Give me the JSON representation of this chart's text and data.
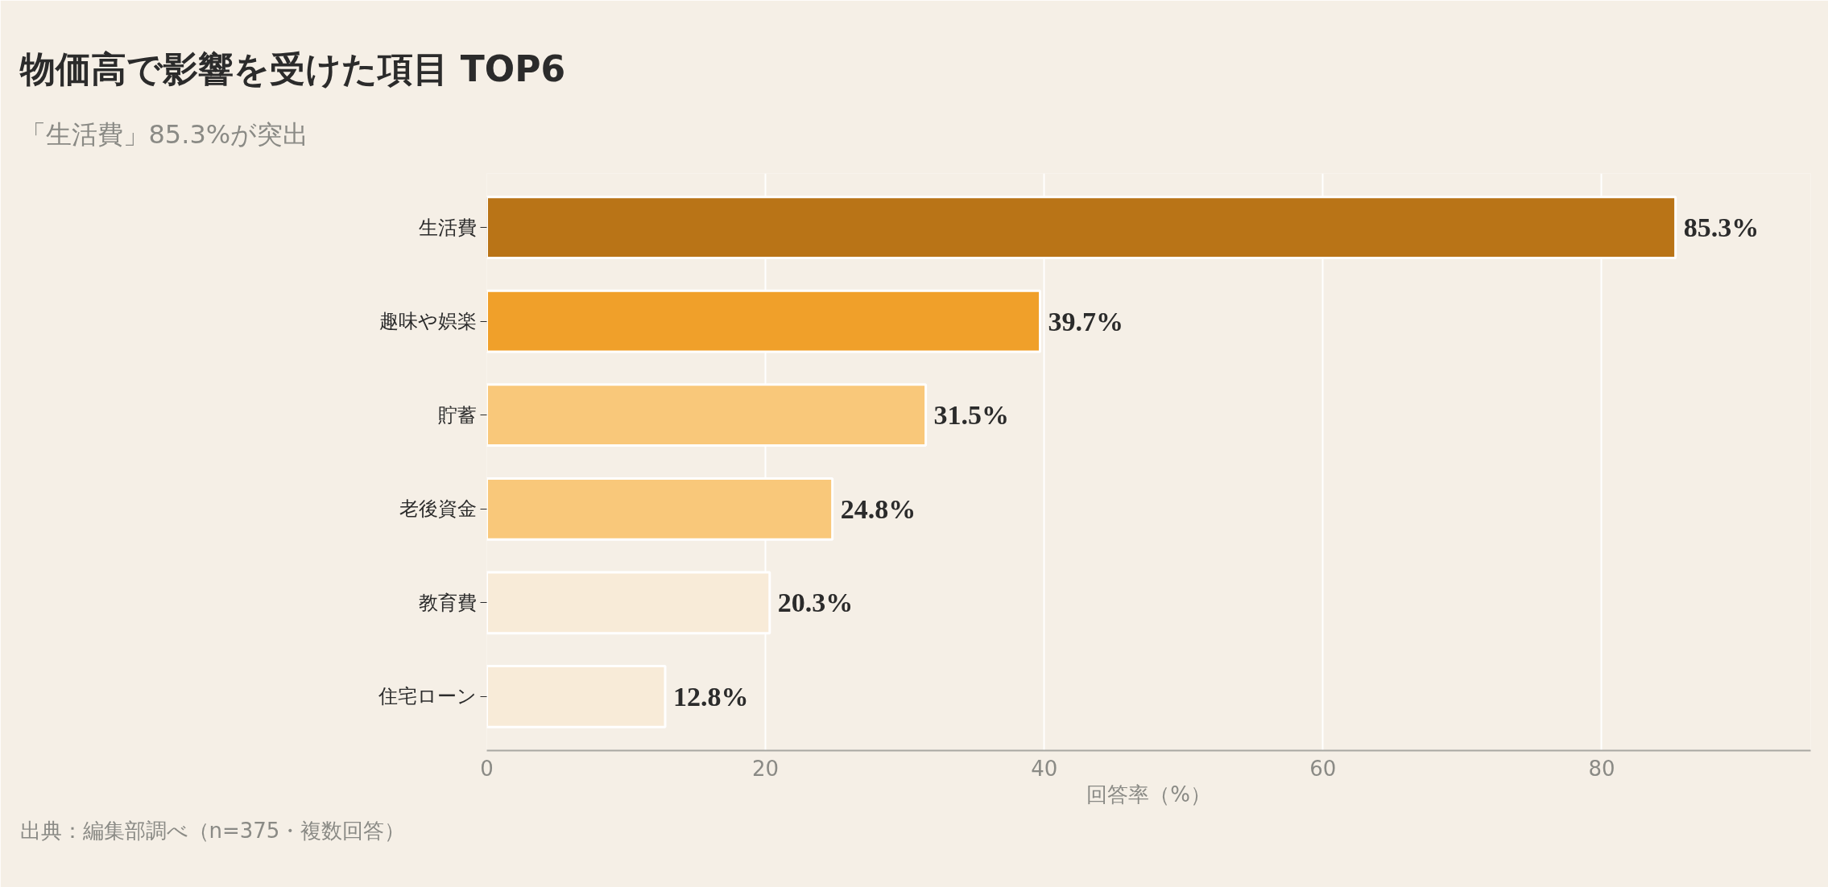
{
  "chart_data": {
    "type": "bar",
    "orientation": "horizontal",
    "title": "物価高で影響を受けた項目 TOP6",
    "subtitle": "「生活費」85.3%が突出",
    "xlabel": "回答率（%）",
    "categories": [
      "生活費",
      "趣味や娯楽",
      "貯蓄",
      "老後資金",
      "教育費",
      "住宅ローン"
    ],
    "values": [
      85.3,
      39.7,
      31.5,
      24.8,
      20.3,
      12.8
    ],
    "colors": [
      "#b97417",
      "#f0a02a",
      "#f9c87a",
      "#f9c87a",
      "#f8ebd8",
      "#f8ebd8"
    ],
    "value_labels": [
      "85.3%",
      "39.7%",
      "31.5%",
      "24.8%",
      "20.3%",
      "12.8%"
    ],
    "xlim": [
      0,
      95
    ],
    "xticks": [
      0,
      20,
      40,
      60,
      80
    ],
    "grid": "x",
    "annotations": [
      "出典：編集部調べ（n=375・複数回答）"
    ]
  }
}
